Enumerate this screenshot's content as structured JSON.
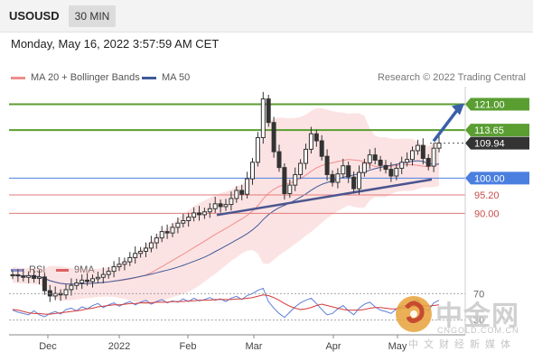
{
  "header": {
    "symbol": "USOUSD",
    "timeframe": "30 MIN"
  },
  "datetime": "Monday, May 16, 2022 3:57:59 AM CET",
  "credit": "Research © 2022 Trading Central",
  "legend_main": [
    {
      "label": "MA 20 + Bollinger Bands",
      "color": "#f08c8c"
    },
    {
      "label": "MA 50",
      "color": "#3f5a99"
    }
  ],
  "legend_rsi": [
    {
      "label": "RSI",
      "color": "#5b7fd6"
    },
    {
      "label": "9MA",
      "color": "#d43b3b"
    }
  ],
  "watermark": {
    "name": "中金网",
    "url": "CNGOLD.COM.CN",
    "tagline": "中文财经新媒体"
  },
  "colors": {
    "resistance": "#5a9e32",
    "support": "#4a7fe0",
    "pivot": "#e07a7a",
    "current": "#333333",
    "arrow": "#3b5fa8"
  },
  "chart_data": [
    {
      "type": "candlestick",
      "title": "",
      "x_ticks": [
        "Dec",
        "2022",
        "Feb",
        "Mar",
        "Apr",
        "May"
      ],
      "ylim": [
        77,
        126
      ],
      "levels": [
        {
          "value": 121.0,
          "label": "121.00",
          "kind": "resistance"
        },
        {
          "value": 113.65,
          "label": "113.65",
          "kind": "resistance"
        },
        {
          "value": 109.94,
          "label": "109.94",
          "kind": "current"
        },
        {
          "value": 100.0,
          "label": "100.00",
          "kind": "support"
        },
        {
          "value": 95.2,
          "label": "95.20",
          "kind": "pivot"
        },
        {
          "value": 90.0,
          "label": "90.00",
          "kind": "pivot"
        }
      ],
      "close_series": [
        72.5,
        72.2,
        71.8,
        72.3,
        71.5,
        71.9,
        68,
        66.5,
        67.2,
        66.8,
        68.3,
        69.5,
        70.2,
        71,
        70.6,
        71.4,
        71.8,
        72.6,
        73.5,
        74.8,
        75.5,
        76.2,
        77.4,
        78.6,
        79.2,
        80.1,
        81.6,
        83,
        84.8,
        84.4,
        86,
        87.2,
        87.9,
        88.9,
        90.1,
        89.6,
        90.4,
        91.3,
        92.7,
        91.9,
        92.5,
        94.2,
        96.5,
        95.4,
        99.8,
        104.5,
        111.5,
        122.5,
        115.8,
        107.5,
        103,
        95.6,
        98,
        101,
        104.2,
        108.2,
        112.6,
        110.6,
        106.2,
        101,
        98.8,
        101.2,
        103.5,
        100.3,
        97,
        101.6,
        104.3,
        106.6,
        105.1,
        103.6,
        102.5,
        100.6,
        102.8,
        104.5,
        105.3,
        107.8,
        109.3,
        105.6,
        103.4,
        108.5,
        109.94
      ],
      "uptrend_line": [
        {
          "x": "Feb",
          "y": 89.5
        },
        {
          "x": "May",
          "y": 99.6
        }
      ],
      "projection_arrow": {
        "from": 110.5,
        "to": 121.0
      }
    },
    {
      "type": "line",
      "title": "",
      "series": [
        {
          "name": "RSI",
          "values": [
            45,
            42,
            40,
            38,
            44,
            38,
            35,
            40,
            43,
            39,
            46,
            48,
            44,
            50,
            47,
            52,
            55,
            49,
            53,
            56,
            51,
            55,
            58,
            53,
            57,
            60,
            54,
            58,
            61,
            56,
            59,
            57,
            62,
            58,
            63,
            59,
            61,
            64,
            60,
            62,
            58,
            63,
            66,
            61,
            67,
            70,
            75,
            78,
            58,
            48,
            40,
            34,
            42,
            50,
            56,
            60,
            63,
            55,
            46,
            38,
            40,
            47,
            52,
            44,
            38,
            48,
            54,
            57,
            50,
            45,
            43,
            40,
            47,
            51,
            53,
            58,
            61,
            49,
            44,
            56,
            60
          ]
        },
        {
          "name": "9MA",
          "values": [
            46,
            45,
            43,
            41,
            40,
            40,
            39,
            39,
            40,
            41,
            42,
            43,
            44,
            45,
            47,
            48,
            50,
            51,
            52,
            53,
            53,
            54,
            55,
            55,
            56,
            56,
            56,
            57,
            57,
            57,
            58,
            58,
            58,
            59,
            59,
            60,
            60,
            60,
            61,
            61,
            61,
            61,
            62,
            62,
            63,
            64,
            66,
            68,
            67,
            64,
            60,
            55,
            51,
            48,
            46,
            47,
            49,
            52,
            54,
            52,
            50,
            48,
            46,
            45,
            45,
            45,
            46,
            48,
            49,
            49,
            48,
            47,
            47,
            48,
            49,
            50,
            52,
            52,
            51,
            52,
            53
          ]
        }
      ],
      "ylim": [
        20,
        80
      ],
      "y_ticks": [
        70,
        30
      ],
      "legend": "top-left"
    }
  ]
}
